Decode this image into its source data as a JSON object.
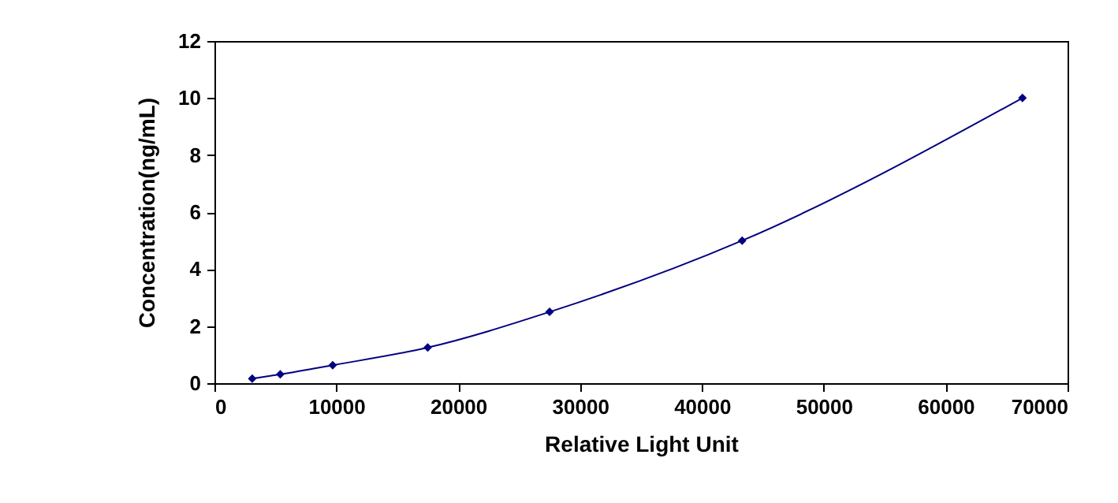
{
  "chart_data": {
    "type": "line",
    "xlabel": "Relative Light Unit",
    "ylabel": "Concentration(ng/mL)",
    "x": [
      3100,
      5400,
      9700,
      17500,
      27500,
      43300,
      66300
    ],
    "series": [
      {
        "color": "#000080",
        "values": [
          0.16,
          0.31,
          0.63,
          1.25,
          2.5,
          5,
          10
        ]
      }
    ],
    "xlim": [
      0,
      70000
    ],
    "xticks": [
      0,
      10000,
      20000,
      30000,
      40000,
      50000,
      60000,
      70000
    ],
    "ylim": [
      0,
      12
    ],
    "yticks": [
      0,
      2,
      4,
      6,
      8,
      10,
      12
    ],
    "grid": false,
    "marker": "diamond",
    "line_style": "solid"
  }
}
